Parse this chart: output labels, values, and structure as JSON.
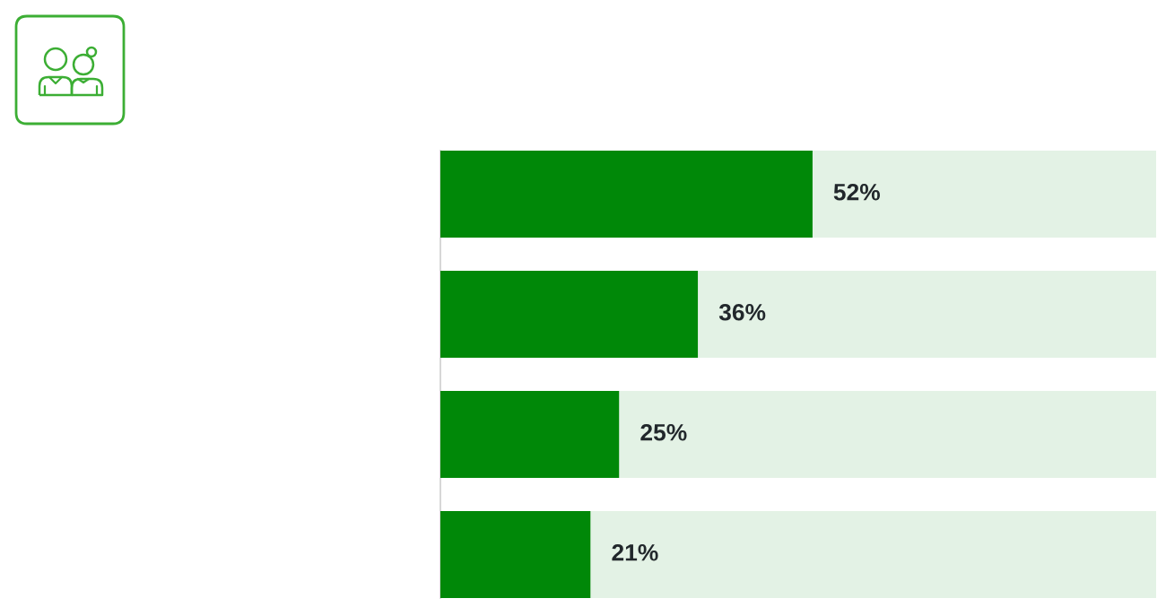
{
  "chart_data": {
    "type": "bar",
    "orientation": "horizontal",
    "stacked": true,
    "categories": [
      null,
      null,
      null,
      null
    ],
    "series": [
      {
        "color": "#008808",
        "values": [
          52,
          36,
          25,
          21
        ],
        "value_labels": [
          "52%",
          "36%",
          "25%",
          "21%"
        ]
      },
      {
        "color": "#e3f2e5",
        "values": [
          48,
          64,
          75,
          79
        ]
      }
    ],
    "xlim": [
      0,
      100
    ]
  }
}
